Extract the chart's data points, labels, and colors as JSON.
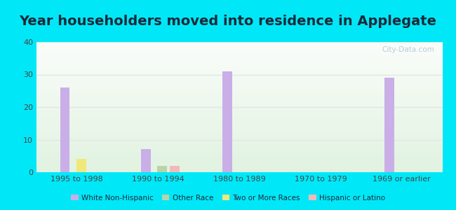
{
  "title": "Year householders moved into residence in Applegate",
  "categories": [
    "1995 to 1998",
    "1990 to 1994",
    "1980 to 1989",
    "1970 to 1979",
    "1969 or earlier"
  ],
  "series": {
    "White Non-Hispanic": [
      26,
      7,
      31,
      0,
      29
    ],
    "Two or More Races": [
      4,
      0,
      0,
      0,
      0
    ],
    "Other Race": [
      0,
      2,
      0,
      0,
      0
    ],
    "Hispanic or Latino": [
      0,
      2,
      0,
      0,
      0
    ]
  },
  "bar_colors": {
    "White Non-Hispanic": "#c9aee8",
    "Two or More Races": "#f0e87a",
    "Other Race": "#b8d4a8",
    "Hispanic or Latino": "#f4b8b8"
  },
  "legend_order": [
    "White Non-Hispanic",
    "Other Race",
    "Two or More Races",
    "Hispanic or Latino"
  ],
  "ylim": [
    0,
    40
  ],
  "yticks": [
    0,
    10,
    20,
    30,
    40
  ],
  "background_color": "#00e8f8",
  "title_color": "#1a2a3a",
  "title_fontsize": 14,
  "bar_width": 0.12,
  "watermark": "City-Data.com",
  "watermark_color": "#b0c8d8",
  "tick_color": "#444444",
  "grid_color": "#e0e8e0",
  "plot_bg": "#e8f4e8"
}
